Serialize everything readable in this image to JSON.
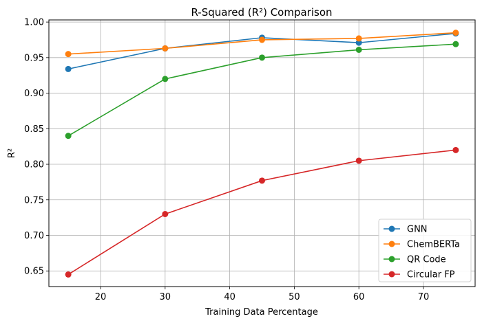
{
  "chart_data": {
    "type": "line",
    "title": "R-Squared (R²) Comparison",
    "xlabel": "Training Data Percentage",
    "ylabel": "R²",
    "x": [
      15,
      30,
      45,
      60,
      75
    ],
    "xlim": [
      12,
      78
    ],
    "ylim": [
      0.628,
      1.003
    ],
    "xticks": [
      20,
      30,
      40,
      50,
      60,
      70
    ],
    "yticks": [
      0.65,
      0.7,
      0.75,
      0.8,
      0.85,
      0.9,
      0.95,
      1.0
    ],
    "grid": true,
    "legend_position": "lower-right",
    "series": [
      {
        "name": "GNN",
        "color": "#1f77b4",
        "values": [
          0.934,
          0.963,
          0.978,
          0.971,
          0.984
        ]
      },
      {
        "name": "ChemBERTa",
        "color": "#ff7f0e",
        "values": [
          0.955,
          0.963,
          0.975,
          0.977,
          0.985
        ]
      },
      {
        "name": "QR Code",
        "color": "#2ca02c",
        "values": [
          0.84,
          0.92,
          0.95,
          0.961,
          0.969
        ]
      },
      {
        "name": "Circular FP",
        "color": "#d62728",
        "values": [
          0.645,
          0.73,
          0.777,
          0.805,
          0.82
        ]
      }
    ]
  }
}
